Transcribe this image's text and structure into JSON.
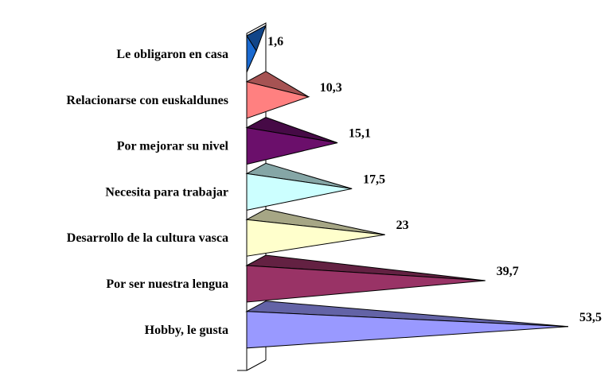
{
  "chart_data": {
    "type": "bar",
    "orientation": "horizontal",
    "style": "3d-pyramid",
    "title": "",
    "xlabel": "",
    "ylabel": "",
    "xlim": [
      0,
      60
    ],
    "grid": false,
    "legend": "none",
    "categories": [
      "Le obligaron en casa",
      "Relacionarse con euskaldunes",
      "Por mejorar su nivel",
      "Necesita para trabajar",
      "Desarrollo de la cultura vasca",
      "Por ser nuestra lengua",
      "Hobby, le gusta"
    ],
    "value_labels": [
      "1,6",
      "10,3",
      "15,1",
      "17,5",
      "23",
      "39,7",
      "53,5"
    ],
    "values": [
      1.6,
      10.3,
      15.1,
      17.5,
      23,
      39.7,
      53.5
    ],
    "colors": [
      "#1a6ad1",
      "#ff8080",
      "#6b0f6b",
      "#ccffff",
      "#ffffcc",
      "#993366",
      "#9999ff"
    ]
  }
}
